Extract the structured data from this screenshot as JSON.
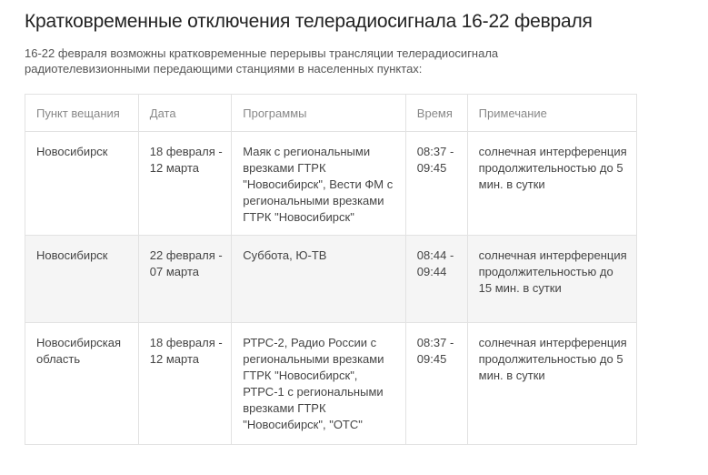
{
  "title": "Кратковременные отключения телерадиосигнала 16-22 февраля",
  "intro": "16-22 февраля возможны кратковременные перерывы трансляции телерадиосигнала радиотелевизионными передающими станциями в населенных пунктах:",
  "table": {
    "headers": [
      "Пункт вещания",
      "Дата",
      "Программы",
      "Время",
      "Примечание"
    ],
    "rows": [
      {
        "place": "Новосибирск",
        "date": "18 февраля - 12 марта",
        "programs": "Маяк с региональными врезками ГТРК \"Новосибирск\", Вести ФМ с региональными врезками ГТРК \"Новосибирск\"",
        "time": "08:37 - 09:45",
        "note": "солнечная интерференция продолжительностью до 5 мин. в сутки"
      },
      {
        "place": "Новосибирск",
        "date": "22 февраля - 07 марта",
        "programs": "Суббота, Ю-ТВ",
        "time": "08:44 - 09:44",
        "note": "солнечная интерференция продолжительностью до 15 мин. в сутки"
      },
      {
        "place": "Новосибирская область",
        "date": "18 февраля - 12 марта",
        "programs": "РТРС-2, Радио России с региональными врезками ГТРК \"Новосибирск\", РТРС-1 с региональными врезками ГТРК \"Новосибирск\", \"ОТС\"",
        "time": "08:37 - 09:45",
        "note": "солнечная интерференция продолжительностью до 5 мин. в сутки"
      }
    ]
  }
}
